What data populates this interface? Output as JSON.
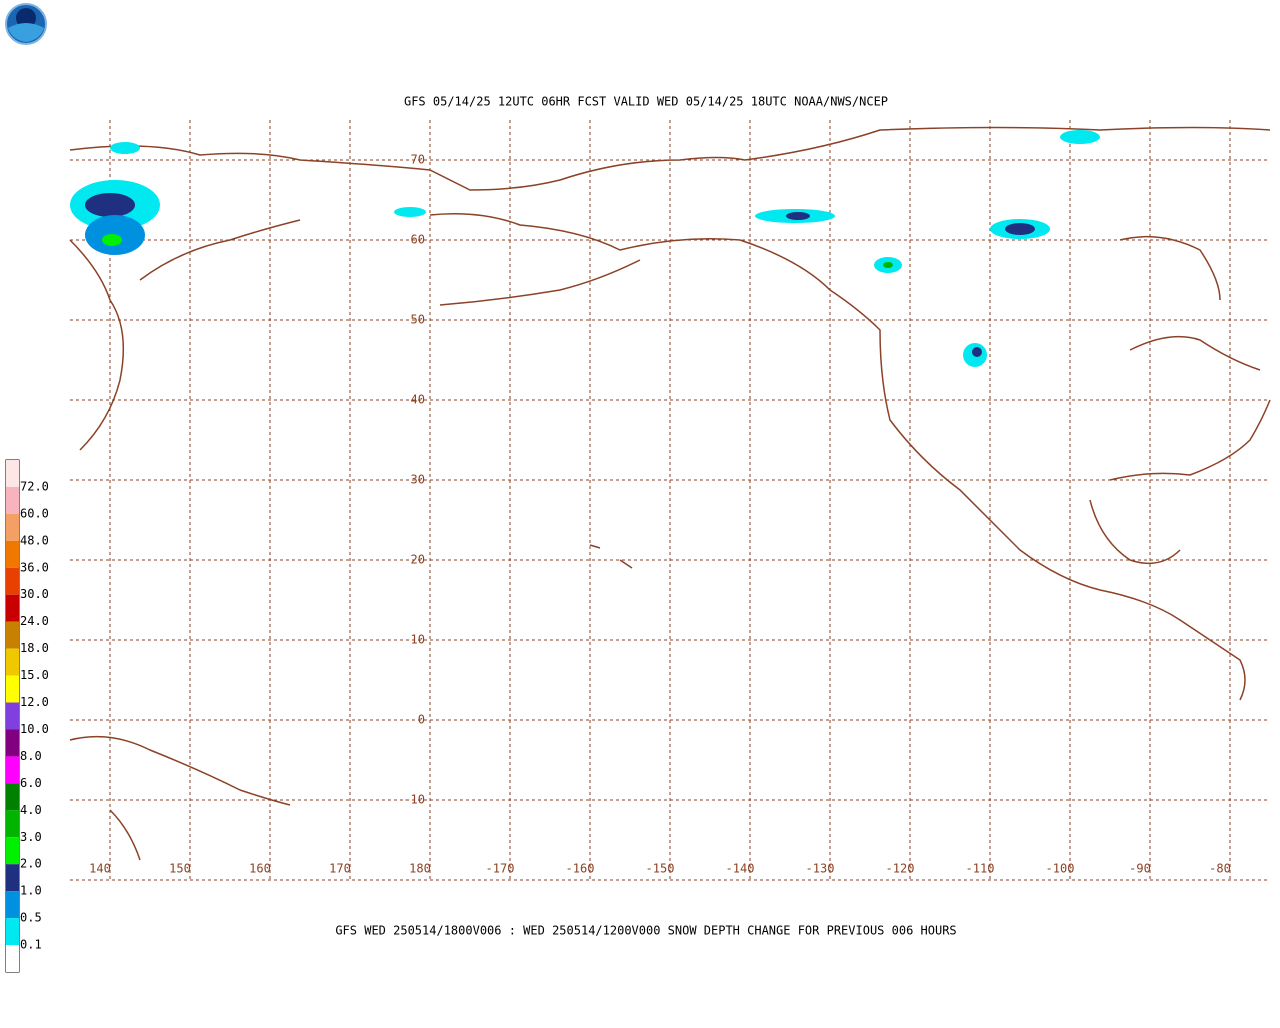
{
  "header": {
    "title": "GFS 05/14/25 12UTC 06HR FCST VALID WED 05/14/25 18UTC NOAA/NWS/NCEP"
  },
  "map": {
    "lat_labels": [
      "70",
      "60",
      "50",
      "40",
      "30",
      "20",
      "10",
      "0",
      "-10"
    ],
    "lon_labels": [
      "140",
      "150",
      "160",
      "170",
      "180",
      "-170",
      "-160",
      "-150",
      "-140",
      "-130",
      "-120",
      "-110",
      "-100",
      "-90",
      "-80"
    ],
    "coast_color": "#8b4226"
  },
  "legend": {
    "labels": [
      "72.0",
      "60.0",
      "48.0",
      "36.0",
      "30.0",
      "24.0",
      "18.0",
      "15.0",
      "12.0",
      "10.0",
      "8.0",
      "6.0",
      "4.0",
      "3.0",
      "2.0",
      "1.0",
      "0.5",
      "0.1"
    ],
    "colors": [
      "#fde6e6",
      "#f8b4be",
      "#f4a064",
      "#f07800",
      "#e84000",
      "#c80000",
      "#c88000",
      "#f0c800",
      "#ffff00",
      "#8040e0",
      "#800080",
      "#ff00ff",
      "#008000",
      "#00b400",
      "#00f000",
      "#203080",
      "#0090e0",
      "#00e8f0",
      "#ffffff"
    ]
  },
  "footer": {
    "caption": "GFS WED 250514/1800V006 : WED 250514/1200V000 SNOW DEPTH CHANGE FOR PREVIOUS 006 HOURS"
  }
}
